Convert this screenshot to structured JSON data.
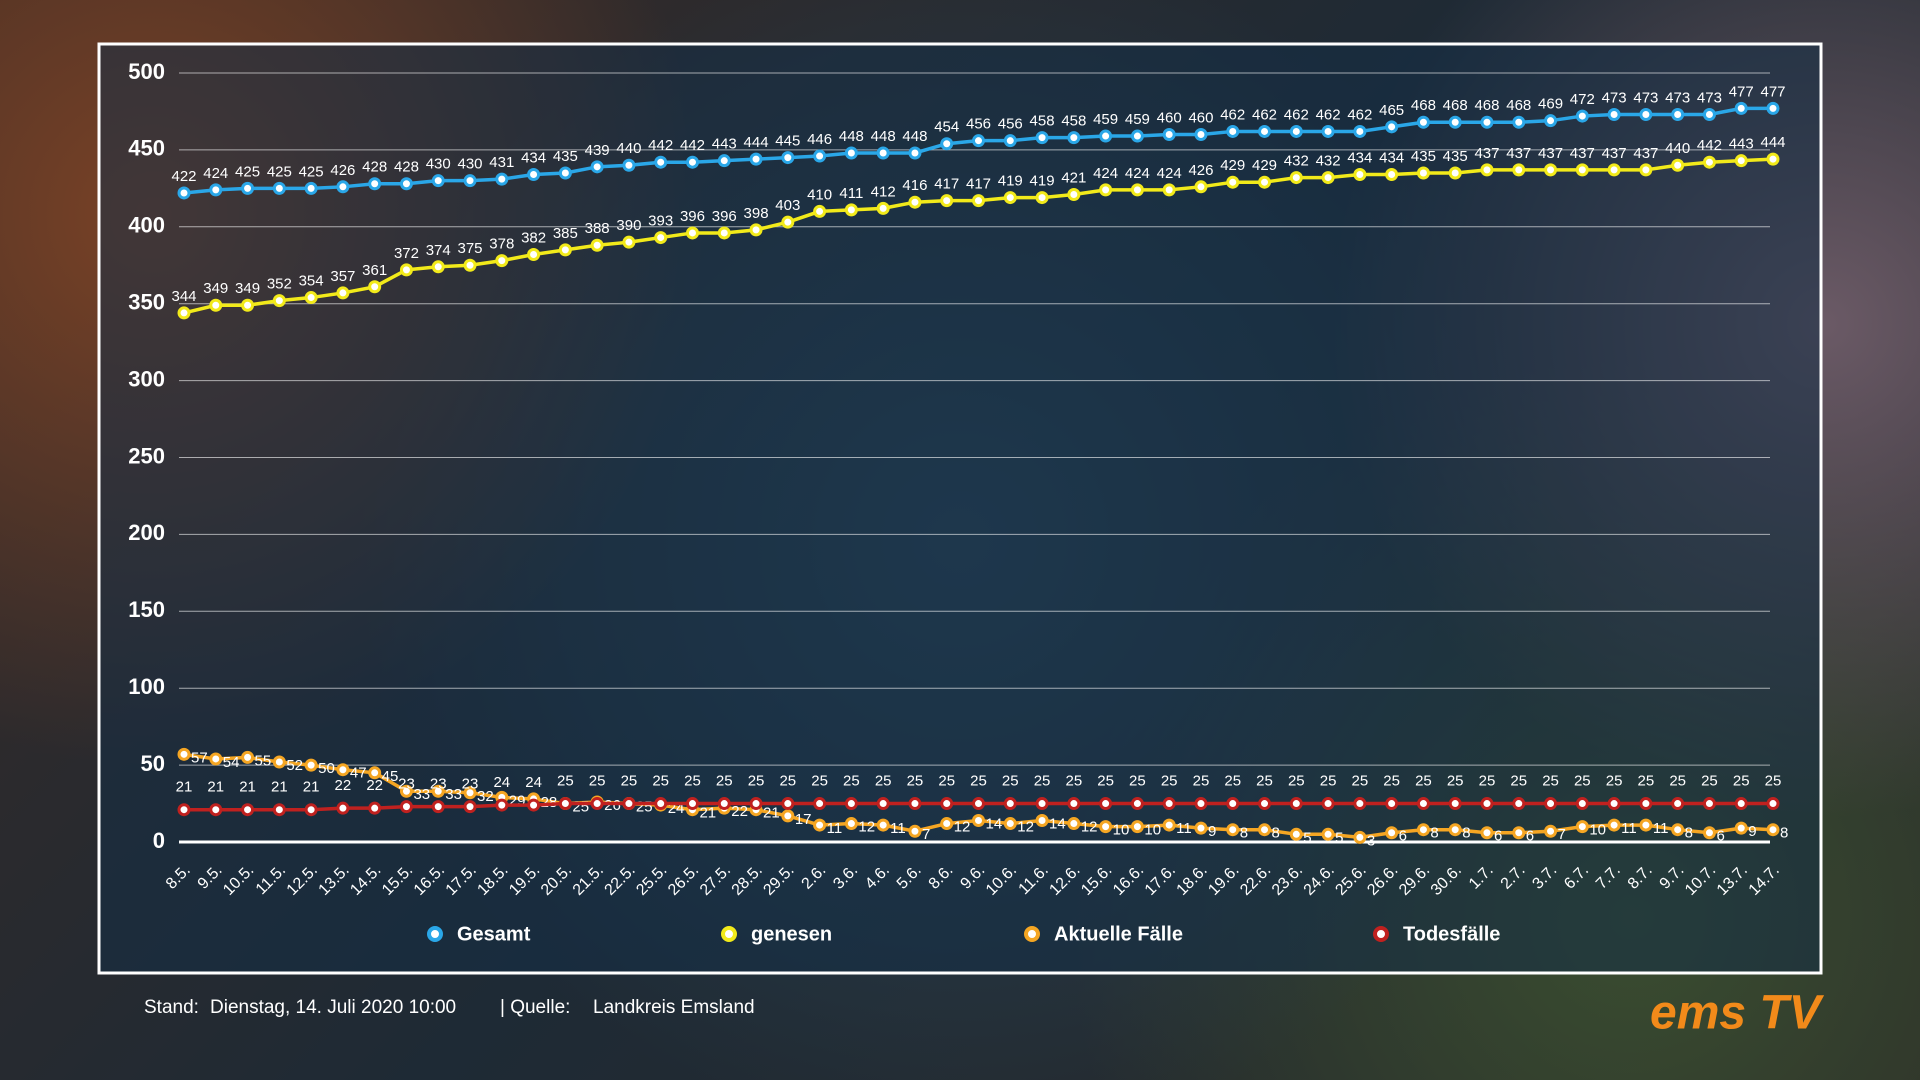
{
  "chart_data": {
    "type": "line",
    "categories": [
      "8.5.",
      "9.5.",
      "10.5.",
      "11.5.",
      "12.5.",
      "13.5.",
      "14.5.",
      "15.5.",
      "16.5.",
      "17.5.",
      "18.5.",
      "19.5.",
      "20.5.",
      "21.5.",
      "22.5.",
      "25.5.",
      "26.5.",
      "27.5.",
      "28.5.",
      "29.5.",
      "2.6.",
      "3.6.",
      "4.6.",
      "5.6.",
      "8.6.",
      "9.6.",
      "10.6.",
      "11.6.",
      "12.6.",
      "15.6.",
      "16.6.",
      "17.6.",
      "18.6.",
      "19.6.",
      "22.6.",
      "23.6.",
      "24.6.",
      "25.6.",
      "26.6.",
      "29.6.",
      "30.6.",
      "1.7.",
      "2.7.",
      "3.7.",
      "6.7.",
      "7.7.",
      "8.7.",
      "9.7.",
      "10.7.",
      "13.7.",
      "14.7."
    ],
    "series": [
      {
        "name": "Gesamt",
        "color": "#2aa7e8",
        "values": [
          422,
          424,
          425,
          425,
          425,
          426,
          428,
          428,
          430,
          430,
          431,
          434,
          435,
          439,
          440,
          442,
          442,
          443,
          444,
          445,
          446,
          448,
          448,
          448,
          454,
          456,
          456,
          458,
          458,
          459,
          459,
          460,
          460,
          462,
          462,
          462,
          462,
          462,
          465,
          468,
          468,
          468,
          468,
          469,
          472,
          473,
          473,
          473,
          473,
          477,
          477
        ]
      },
      {
        "name": "genesen",
        "color": "#f2ea1a",
        "values": [
          344,
          349,
          349,
          352,
          354,
          357,
          361,
          372,
          374,
          375,
          378,
          382,
          385,
          388,
          390,
          393,
          396,
          396,
          398,
          403,
          410,
          411,
          412,
          416,
          417,
          417,
          419,
          419,
          421,
          424,
          424,
          424,
          426,
          429,
          429,
          432,
          432,
          434,
          434,
          435,
          435,
          437,
          437,
          437,
          437,
          437,
          437,
          440,
          442,
          443,
          444
        ]
      },
      {
        "name": "Aktuelle Fälle",
        "color": "#f5a623",
        "values": [
          57,
          54,
          55,
          52,
          50,
          47,
          45,
          33,
          33,
          32,
          29,
          28,
          25,
          26,
          25,
          24,
          21,
          22,
          21,
          17,
          11,
          12,
          11,
          7,
          12,
          14,
          12,
          14,
          12,
          10,
          10,
          11,
          9,
          8,
          8,
          5,
          5,
          3,
          6,
          8,
          8,
          6,
          6,
          7,
          10,
          11,
          11,
          8,
          6,
          9,
          8
        ]
      },
      {
        "name": "Todesfälle",
        "color": "#c0211f",
        "values": [
          21,
          21,
          21,
          21,
          21,
          22,
          22,
          23,
          23,
          23,
          24,
          24,
          25,
          25,
          25,
          25,
          25,
          25,
          25,
          25,
          25,
          25,
          25,
          25,
          25,
          25,
          25,
          25,
          25,
          25,
          25,
          25,
          25,
          25,
          25,
          25,
          25,
          25,
          25,
          25,
          25,
          25,
          25,
          25,
          25,
          25,
          25,
          25,
          25,
          25,
          25
        ]
      }
    ],
    "ylim": [
      0,
      500
    ],
    "yticks": [
      0,
      50,
      100,
      150,
      200,
      250,
      300,
      350,
      400,
      450,
      500
    ],
    "grid": true,
    "legend": "bottom"
  },
  "footer": {
    "stand_label": "Stand:",
    "stand": "Dienstag, 14. Juli 2020 10:00",
    "source_label": "| Quelle:",
    "source": "Landkreis Emsland"
  },
  "logo": "ems TV"
}
